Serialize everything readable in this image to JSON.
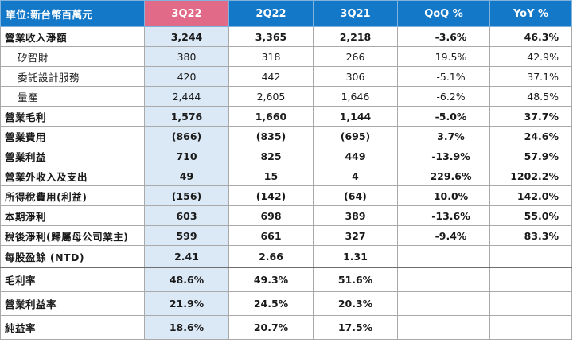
{
  "header": {
    "unit_label": "單位:新台幣百萬元",
    "col1": "3Q22",
    "col2": "2Q22",
    "col3": "3Q21",
    "col4": "QoQ %",
    "col5": "YoY %"
  },
  "colors": {
    "header_blue": "#1378c7",
    "header_highlight": "#e26a89",
    "column_highlight": "#dbe8f6"
  },
  "rows": [
    {
      "label": "營業收入淨額",
      "v1": "3,244",
      "v2": "3,365",
      "v3": "2,218",
      "qoq": "-3.6%",
      "yoy": "46.3%"
    },
    {
      "label": "矽智財",
      "v1": "380",
      "v2": "318",
      "v3": "266",
      "qoq": "19.5%",
      "yoy": "42.9%"
    },
    {
      "label": "委託設計服務",
      "v1": "420",
      "v2": "442",
      "v3": "306",
      "qoq": "-5.1%",
      "yoy": "37.1%"
    },
    {
      "label": "量產",
      "v1": "2,444",
      "v2": "2,605",
      "v3": "1,646",
      "qoq": "-6.2%",
      "yoy": "48.5%"
    },
    {
      "label": "營業毛利",
      "v1": "1,576",
      "v2": "1,660",
      "v3": "1,144",
      "qoq": "-5.0%",
      "yoy": "37.7%"
    },
    {
      "label": "營業費用",
      "v1": "(866)",
      "v2": "(835)",
      "v3": "(695)",
      "qoq": "3.7%",
      "yoy": "24.6%"
    },
    {
      "label": "營業利益",
      "v1": "710",
      "v2": "825",
      "v3": "449",
      "qoq": "-13.9%",
      "yoy": "57.9%"
    },
    {
      "label": "營業外收入及支出",
      "v1": "49",
      "v2": "15",
      "v3": "4",
      "qoq": "229.6%",
      "yoy": "1202.2%"
    },
    {
      "label": "所得稅費用(利益)",
      "v1": "(156)",
      "v2": "(142)",
      "v3": "(64)",
      "qoq": "10.0%",
      "yoy": "142.0%"
    },
    {
      "label": "本期淨利",
      "v1": "603",
      "v2": "698",
      "v3": "389",
      "qoq": "-13.6%",
      "yoy": "55.0%"
    },
    {
      "label": "稅後淨利(歸屬母公司業主)",
      "v1": "599",
      "v2": "661",
      "v3": "327",
      "qoq": "-9.4%",
      "yoy": "83.3%"
    },
    {
      "label": "每股盈餘 (NTD)",
      "v1": "2.41",
      "v2": "2.66",
      "v3": "1.31",
      "qoq": "",
      "yoy": ""
    }
  ],
  "ratios": [
    {
      "label": "毛利率",
      "v1": "48.6%",
      "v2": "49.3%",
      "v3": "51.6%"
    },
    {
      "label": "營業利益率",
      "v1": "21.9%",
      "v2": "24.5%",
      "v3": "20.3%"
    },
    {
      "label": "純益率",
      "v1": "18.6%",
      "v2": "20.7%",
      "v3": "17.5%"
    }
  ]
}
